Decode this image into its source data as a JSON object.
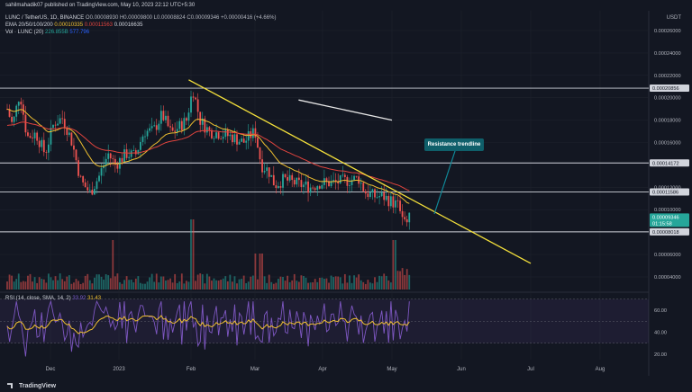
{
  "header": {
    "author": "sahilmahadik07",
    "published": "published on TradingView.com, May 10, 2023 22:12 UTC+5:30"
  },
  "legend": {
    "symbol": "LUNC / TetherUS, 1D, BINANCE",
    "ohlc": "O0.00008930 H0.00009800 L0.00008824 C0.00009346 +0.00000416 (+4.66%)",
    "ema_label": "EMA 20/50/100/200",
    "ema_values": [
      "0.00010335",
      "0.00011563",
      "0.00016635"
    ],
    "vol_label": "Vol · LUNC (20)",
    "vol_values": [
      "226.855B",
      "577.796"
    ]
  },
  "rsi_legend": {
    "label": "RSI (14, close, SMA, 14, 2)",
    "values": [
      "33.92",
      "31.43"
    ]
  },
  "price_axis": {
    "currency": "USDT",
    "ticks": [
      "0.00026000",
      "0.00024000",
      "0.00022000",
      "0.00020000",
      "0.00018000",
      "0.00016000",
      "0.00012000",
      "0.00010000",
      "0.00006000",
      "0.00004000"
    ],
    "level_labels": [
      "0.00020856",
      "0.00014172",
      "0.00011586",
      "0.00008018"
    ],
    "current_price": "0.00009346",
    "countdown": "01:15:58"
  },
  "rsi_axis": {
    "ticks": [
      "60.00",
      "40.00",
      "20.00"
    ]
  },
  "time_axis": {
    "ticks": [
      "Dec",
      "2023",
      "Feb",
      "Mar",
      "Apr",
      "May",
      "Jun",
      "Jul",
      "Aug"
    ]
  },
  "annotation": {
    "label": "Resistance trendline"
  },
  "brand": {
    "name": "TradingView"
  },
  "colors": {
    "background": "#131722",
    "up": "#26a69a",
    "down": "#ef5350",
    "trendline": "#f5e13b",
    "ema20": "#f0c030",
    "ema50": "#e0443e",
    "ema100": "#7f5fd0",
    "ema200": "#e6e6e6",
    "rsi": "#7e57c2",
    "rsi_sma": "#f0c030",
    "callout": "#0f5f6a"
  },
  "chart_data": {
    "type": "candlestick",
    "symbol": "LUNC / TetherUS",
    "interval": "1D",
    "y_range": [
      2.97e-05,
      0.00027
    ],
    "horizontal_levels": [
      0.00020856,
      0.00014172,
      0.00011586,
      8.018e-05
    ],
    "trendline": {
      "from": {
        "date": "2023-01-31",
        "price": 0.000216
      },
      "to": {
        "date": "2023-07-01",
        "price": 5.2e-05
      }
    },
    "ema200_segment": {
      "from": {
        "date": "2023-03-21",
        "price": 0.000198
      },
      "to": {
        "date": "2023-05-01",
        "price": 0.00018
      }
    },
    "last_close": 9.346e-05,
    "rsi": {
      "last": 33.92,
      "sma": 31.43,
      "band": [
        30,
        70
      ]
    }
  }
}
